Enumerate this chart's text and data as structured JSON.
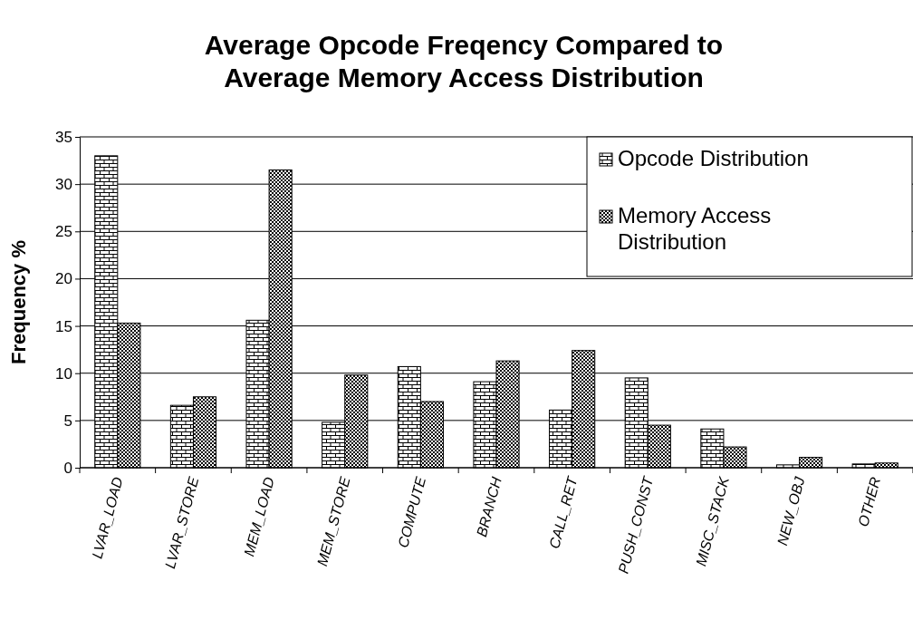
{
  "chart_data": {
    "type": "bar",
    "title": "Average Opcode Freqency Compared to Average Memory Access Distribution",
    "ylabel": "Frequency %",
    "categories": [
      "LVAR_LOAD",
      "LVAR_STORE",
      "MEM_LOAD",
      "MEM_STORE",
      "COMPUTE",
      "BRANCH",
      "CALL_RET",
      "PUSH_CONST",
      "MISC_STACK",
      "NEW_OBJ",
      "OTHER"
    ],
    "series": [
      {
        "name": "Opcode Distribution",
        "color": "#000000",
        "values": [
          33,
          6.6,
          15.6,
          4.8,
          10.7,
          9.1,
          6.1,
          9.5,
          4.1,
          0.3,
          0.4
        ]
      },
      {
        "name": "Memory Access Distribution",
        "color": "#000000",
        "values": [
          15.3,
          7.5,
          31.5,
          9.8,
          7.0,
          11.3,
          12.4,
          4.5,
          2.2,
          1.1,
          0.5
        ]
      }
    ],
    "ylim": [
      0,
      35
    ],
    "yticks": [
      0,
      5,
      10,
      15,
      20,
      25,
      30,
      35
    ],
    "grid": "y",
    "legend": "top right"
  }
}
